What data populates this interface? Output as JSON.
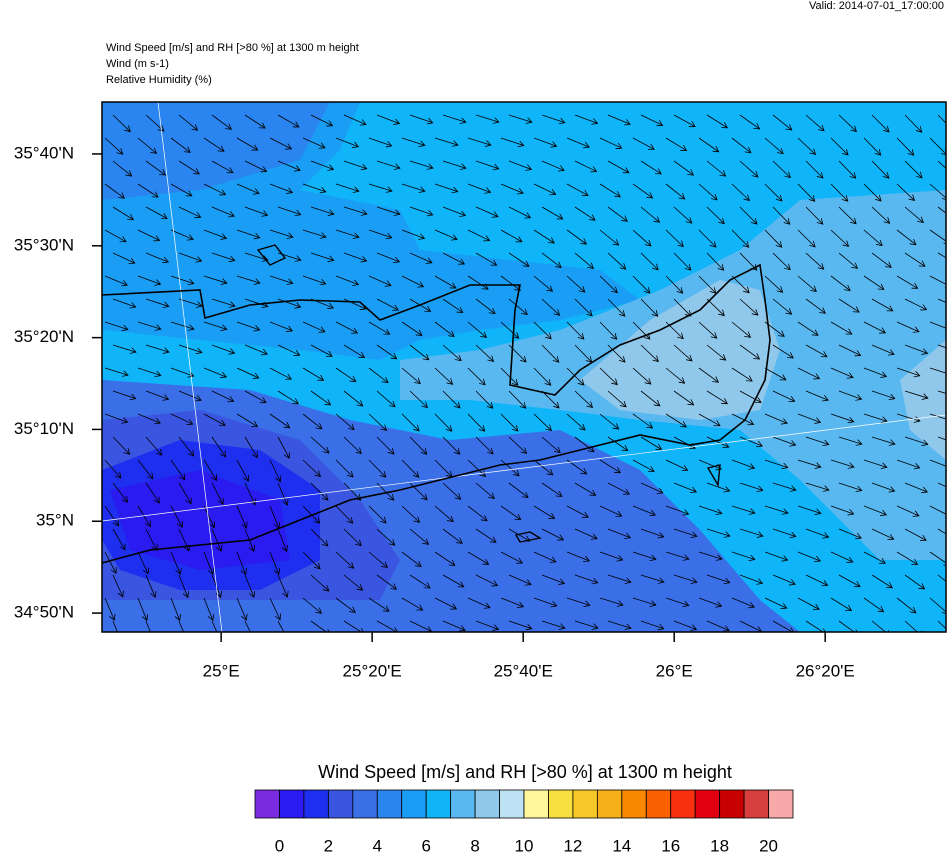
{
  "valid": "Valid: 2014-07-01_17:00:00",
  "header": [
    "Wind Speed [m/s] and RH [>80 %] at 1300 m height",
    "Wind   (m s-1)",
    "Relative Humidity   (%)"
  ],
  "map": {
    "xlim": [
      24.737,
      26.6
    ],
    "ylim": [
      34.799,
      35.761
    ],
    "xticks": [
      {
        "value": 25,
        "label": "25°E"
      },
      {
        "value": 25.3333,
        "label": "25°20'E"
      },
      {
        "value": 25.6667,
        "label": "25°40'E"
      },
      {
        "value": 26,
        "label": "26°E"
      },
      {
        "value": 26.3333,
        "label": "26°20'E"
      }
    ],
    "yticks": [
      {
        "value": 34.8333,
        "label": "34°50'N"
      },
      {
        "value": 35,
        "label": "35°N"
      },
      {
        "value": 35.1667,
        "label": "35°10'N"
      },
      {
        "value": 35.3333,
        "label": "35°20'N"
      },
      {
        "value": 35.5,
        "label": "35°30'N"
      },
      {
        "value": 35.6667,
        "label": "35°40'N"
      }
    ]
  },
  "colorbar": {
    "title": "Wind Speed [m/s] and RH [>80 %] at 1300 m height",
    "colors": [
      "#7a2be0",
      "#2a1bf0",
      "#1f2ff0",
      "#3a56e0",
      "#3a6fe8",
      "#2a85f0",
      "#1a9ef5",
      "#10b4f8",
      "#5ab8f0",
      "#90c8ec",
      "#bde2f4",
      "#fff59a",
      "#f8e040",
      "#f8c828",
      "#f8b018",
      "#f88800",
      "#f86000",
      "#f83010",
      "#e00010",
      "#c80000",
      "#d84040",
      "#f8a8a8"
    ],
    "ticks": [
      0,
      2,
      4,
      6,
      8,
      10,
      12,
      14,
      16,
      18,
      20
    ]
  }
}
